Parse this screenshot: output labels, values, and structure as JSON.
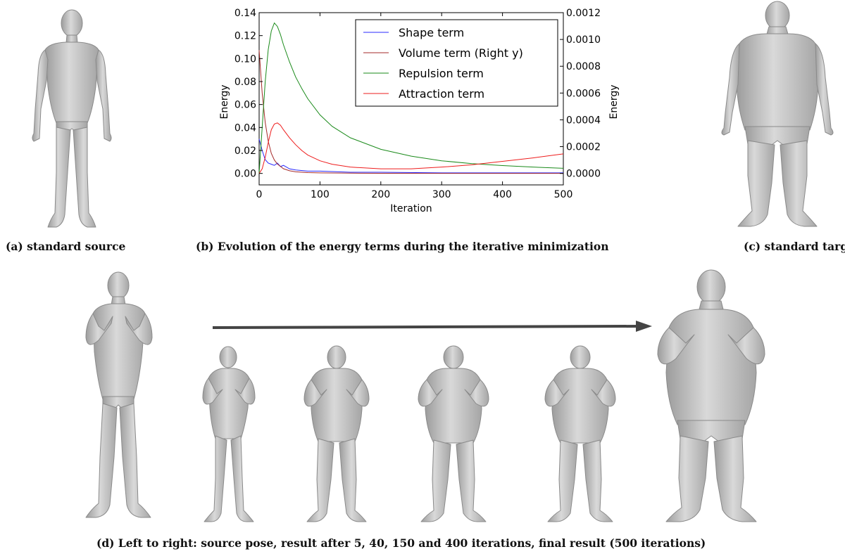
{
  "captions": {
    "a": "(a) standard source",
    "b": "(b) Evolution of the energy terms during the iterative minimization",
    "c": "(c) standard target",
    "d": "(d) Left to right: source pose, result after 5, 40, 150 and 400 iterations, final result (500 iterations)"
  },
  "chart_data": {
    "type": "line",
    "xlabel": "Iteration",
    "ylabel": "Energy",
    "ylabel_right": "Energy",
    "xlim": [
      0,
      500
    ],
    "ylim": [
      -0.01,
      0.14
    ],
    "ylim_right": [
      -8.57e-05,
      0.0012
    ],
    "x_ticks": [
      "0",
      "100",
      "200",
      "300",
      "400",
      "500"
    ],
    "y_ticks": [
      "0.00",
      "0.02",
      "0.04",
      "0.06",
      "0.08",
      "0.10",
      "0.12",
      "0.14"
    ],
    "y_ticks_right": [
      "0.0000",
      "0.0002",
      "0.0004",
      "0.0006",
      "0.0008",
      "0.0010",
      "0.0012"
    ],
    "grid": false,
    "legend_position": "top-right",
    "series": [
      {
        "name": "Shape term",
        "axis": "left",
        "color": "#2a2aff",
        "x": [
          0,
          5,
          10,
          15,
          20,
          25,
          30,
          35,
          40,
          50,
          60,
          80,
          100,
          150,
          200,
          300,
          400,
          500
        ],
        "y": [
          0.03,
          0.02,
          0.012,
          0.009,
          0.008,
          0.007,
          0.009,
          0.006,
          0.007,
          0.004,
          0.003,
          0.002,
          0.002,
          0.001,
          0.001,
          0.0005,
          0.0005,
          0.0005
        ]
      },
      {
        "name": "Volume term (Right y)",
        "axis": "right",
        "color": "#a52a2a",
        "x": [
          0,
          5,
          10,
          15,
          20,
          25,
          30,
          40,
          50,
          60,
          80,
          100,
          150,
          200,
          300,
          400,
          500
        ],
        "y": [
          0.00092,
          0.0006,
          0.00038,
          0.00024,
          0.00015,
          0.0001,
          7e-05,
          3.5e-05,
          2e-05,
          1.2e-05,
          6e-06,
          4e-06,
          2e-06,
          1e-06,
          5e-07,
          3e-07,
          2e-07
        ]
      },
      {
        "name": "Repulsion term",
        "axis": "left",
        "color": "#1a8a1a",
        "x": [
          0,
          5,
          10,
          15,
          20,
          25,
          30,
          35,
          40,
          50,
          60,
          70,
          80,
          100,
          120,
          150,
          200,
          250,
          300,
          350,
          400,
          450,
          500
        ],
        "y": [
          0.0,
          0.04,
          0.08,
          0.108,
          0.124,
          0.131,
          0.128,
          0.121,
          0.112,
          0.097,
          0.084,
          0.074,
          0.065,
          0.051,
          0.041,
          0.031,
          0.021,
          0.015,
          0.011,
          0.0085,
          0.0068,
          0.0055,
          0.0045
        ]
      },
      {
        "name": "Attraction term",
        "axis": "left",
        "color": "#ee1c1c",
        "x": [
          0,
          5,
          10,
          15,
          20,
          25,
          30,
          35,
          40,
          50,
          60,
          70,
          80,
          100,
          120,
          150,
          200,
          250,
          300,
          350,
          400,
          450,
          500
        ],
        "y": [
          0.0,
          0.004,
          0.014,
          0.027,
          0.038,
          0.043,
          0.044,
          0.042,
          0.038,
          0.031,
          0.025,
          0.02,
          0.016,
          0.011,
          0.008,
          0.0055,
          0.004,
          0.004,
          0.0055,
          0.0075,
          0.0105,
          0.0135,
          0.017
        ]
      }
    ]
  },
  "sequence_labels": [
    "source pose",
    "5 iterations",
    "40 iterations",
    "150 iterations",
    "400 iterations",
    "final result (500 iterations)"
  ]
}
